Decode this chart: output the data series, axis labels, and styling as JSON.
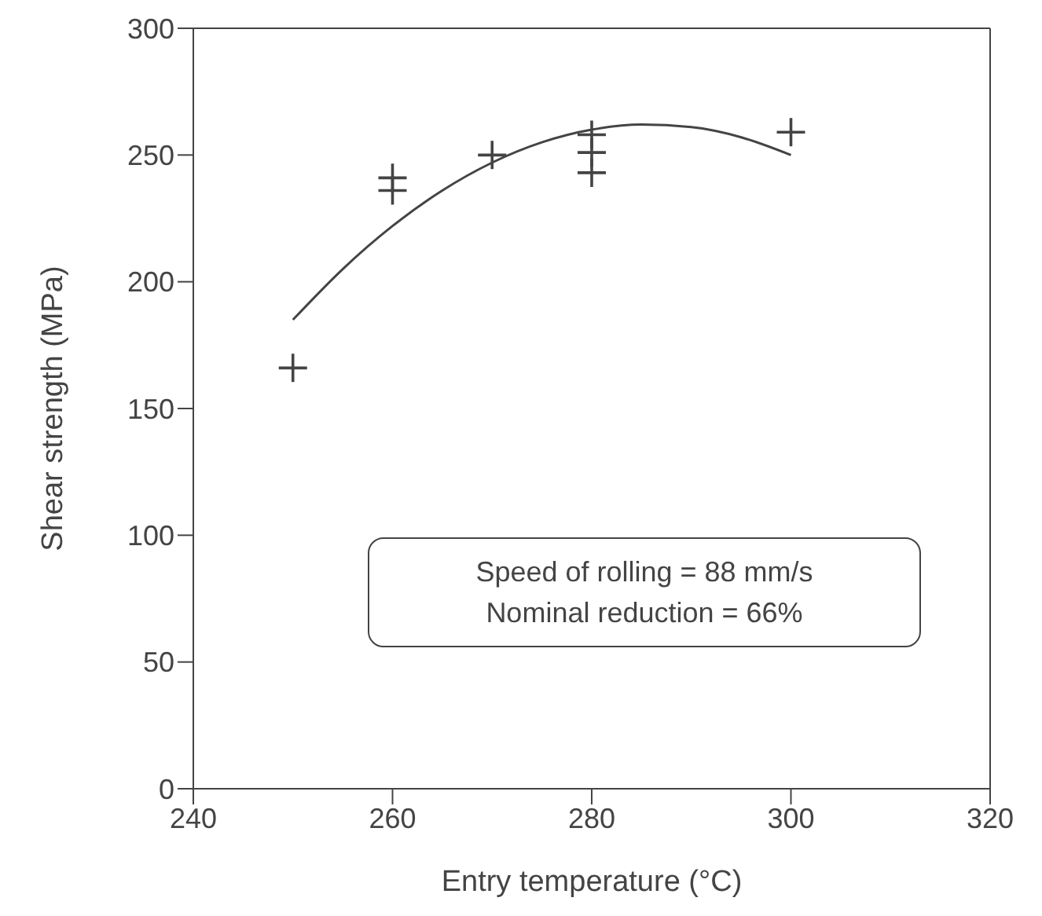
{
  "chart_data": {
    "type": "scatter",
    "xlabel": "Entry temperature (°C)",
    "ylabel": "Shear strength (MPa)",
    "xlim": [
      240,
      320
    ],
    "xticks": [
      240,
      260,
      280,
      300,
      320
    ],
    "ylim": [
      0,
      300
    ],
    "yticks": [
      0,
      50,
      100,
      150,
      200,
      250,
      300
    ],
    "annotations": [
      "Speed of rolling = 88 mm/s",
      "Nominal reduction = 66%"
    ],
    "series": [
      {
        "marker": "cross",
        "color": "#444444",
        "x": [
          250,
          260,
          260,
          270,
          280,
          280,
          280,
          300
        ],
        "values": [
          166,
          241,
          236,
          250,
          258,
          251,
          243,
          259
        ]
      },
      {
        "type": "line",
        "marker": "none",
        "color": "#444444",
        "line_style": "solid",
        "x": [
          250,
          255,
          260,
          265,
          270,
          275,
          280,
          285,
          290,
          295,
          300
        ],
        "values": [
          185,
          205,
          222,
          236,
          247,
          255,
          260,
          262,
          261,
          257,
          250
        ]
      }
    ]
  }
}
